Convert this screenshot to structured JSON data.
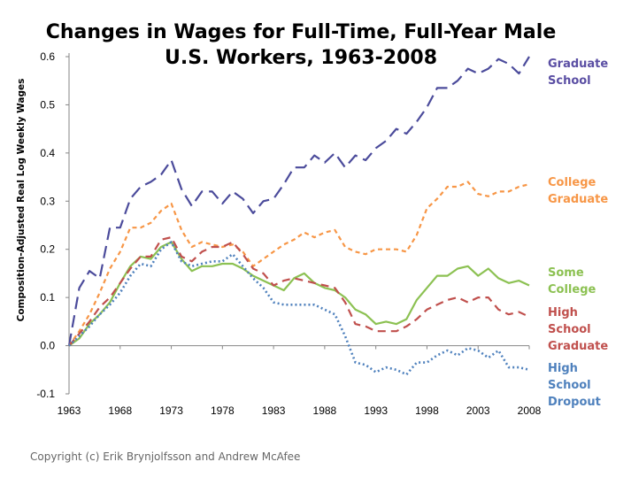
{
  "chart_data": {
    "type": "line",
    "title_line1": "Changes in Wages for Full-Time, Full-Year Male",
    "title_line2": "U.S. Workers, 1963-2008",
    "xlabel": "",
    "ylabel": "Composition-Adjusted Real Log Weekly Wages",
    "xlim": [
      1963,
      2008
    ],
    "ylim": [
      -0.1,
      0.6
    ],
    "xticks": [
      1963,
      1968,
      1973,
      1978,
      1983,
      1988,
      1993,
      1998,
      2003,
      2008
    ],
    "yticks": [
      "-0.1",
      "0.0",
      "0.1",
      "0.2",
      "0.3",
      "0.4",
      "0.5",
      "0.6"
    ],
    "grid": false,
    "x": [
      1963,
      1964,
      1965,
      1966,
      1967,
      1968,
      1969,
      1970,
      1971,
      1972,
      1973,
      1974,
      1975,
      1976,
      1977,
      1978,
      1979,
      1980,
      1981,
      1982,
      1983,
      1984,
      1985,
      1986,
      1987,
      1988,
      1989,
      1990,
      1991,
      1992,
      1993,
      1994,
      1995,
      1996,
      1997,
      1998,
      1999,
      2000,
      2001,
      2002,
      2003,
      2004,
      2005,
      2006,
      2007,
      2008
    ],
    "series": [
      {
        "name": "Graduate School",
        "label_lines": [
          "Graduate",
          "School"
        ],
        "color": "#4b4b9b",
        "dash": "14,7",
        "values": [
          0.0,
          0.12,
          0.155,
          0.14,
          0.245,
          0.245,
          0.305,
          0.33,
          0.34,
          0.355,
          0.385,
          0.325,
          0.29,
          0.32,
          0.32,
          0.295,
          0.32,
          0.305,
          0.275,
          0.3,
          0.305,
          0.335,
          0.37,
          0.37,
          0.395,
          0.38,
          0.4,
          0.37,
          0.395,
          0.385,
          0.41,
          0.425,
          0.45,
          0.44,
          0.465,
          0.495,
          0.535,
          0.535,
          0.55,
          0.575,
          0.565,
          0.575,
          0.595,
          0.585,
          0.565,
          0.6
        ]
      },
      {
        "name": "College Graduate",
        "label_lines": [
          "College",
          "Graduate"
        ],
        "color": "#f79646",
        "dash": "5,4",
        "values": [
          0.0,
          0.03,
          0.065,
          0.11,
          0.16,
          0.195,
          0.245,
          0.245,
          0.255,
          0.28,
          0.295,
          0.24,
          0.205,
          0.215,
          0.21,
          0.205,
          0.21,
          0.195,
          0.165,
          0.18,
          0.195,
          0.21,
          0.22,
          0.235,
          0.225,
          0.235,
          0.24,
          0.205,
          0.195,
          0.19,
          0.2,
          0.2,
          0.2,
          0.195,
          0.23,
          0.285,
          0.305,
          0.33,
          0.33,
          0.34,
          0.315,
          0.31,
          0.32,
          0.32,
          0.33,
          0.335
        ]
      },
      {
        "name": "Some College",
        "label_lines": [
          "Some",
          "College"
        ],
        "color": "#8cc152",
        "dash": "",
        "values": [
          0.0,
          0.015,
          0.045,
          0.065,
          0.09,
          0.13,
          0.165,
          0.185,
          0.18,
          0.205,
          0.215,
          0.18,
          0.155,
          0.165,
          0.165,
          0.17,
          0.17,
          0.16,
          0.145,
          0.135,
          0.125,
          0.115,
          0.14,
          0.15,
          0.13,
          0.12,
          0.115,
          0.1,
          0.075,
          0.065,
          0.045,
          0.05,
          0.045,
          0.055,
          0.095,
          0.12,
          0.145,
          0.145,
          0.16,
          0.165,
          0.145,
          0.16,
          0.14,
          0.13,
          0.135,
          0.125
        ]
      },
      {
        "name": "High School Graduate",
        "label_lines": [
          "High",
          "School",
          "Graduate"
        ],
        "color": "#c0504d",
        "dash": "9,6",
        "values": [
          0.0,
          0.025,
          0.05,
          0.08,
          0.1,
          0.13,
          0.16,
          0.185,
          0.185,
          0.22,
          0.225,
          0.185,
          0.175,
          0.195,
          0.205,
          0.205,
          0.215,
          0.19,
          0.16,
          0.15,
          0.125,
          0.135,
          0.14,
          0.135,
          0.13,
          0.125,
          0.12,
          0.09,
          0.045,
          0.04,
          0.03,
          0.03,
          0.03,
          0.04,
          0.055,
          0.075,
          0.085,
          0.095,
          0.1,
          0.09,
          0.1,
          0.1,
          0.075,
          0.065,
          0.07,
          0.06
        ]
      },
      {
        "name": "High School Dropout",
        "label_lines": [
          "High",
          "School",
          "Dropout"
        ],
        "color": "#4f81bd",
        "dash": "2,3",
        "values": [
          0.0,
          0.02,
          0.04,
          0.065,
          0.085,
          0.11,
          0.145,
          0.17,
          0.165,
          0.2,
          0.215,
          0.175,
          0.165,
          0.17,
          0.175,
          0.175,
          0.19,
          0.165,
          0.14,
          0.12,
          0.09,
          0.085,
          0.085,
          0.085,
          0.085,
          0.075,
          0.065,
          0.02,
          -0.035,
          -0.04,
          -0.055,
          -0.045,
          -0.05,
          -0.06,
          -0.035,
          -0.035,
          -0.02,
          -0.01,
          -0.02,
          -0.005,
          -0.01,
          -0.025,
          -0.01,
          -0.045,
          -0.045,
          -0.05
        ]
      }
    ]
  },
  "footer": {
    "copyright": "Copyright (c) Erik Brynjolfsson and Andrew McAfee"
  }
}
